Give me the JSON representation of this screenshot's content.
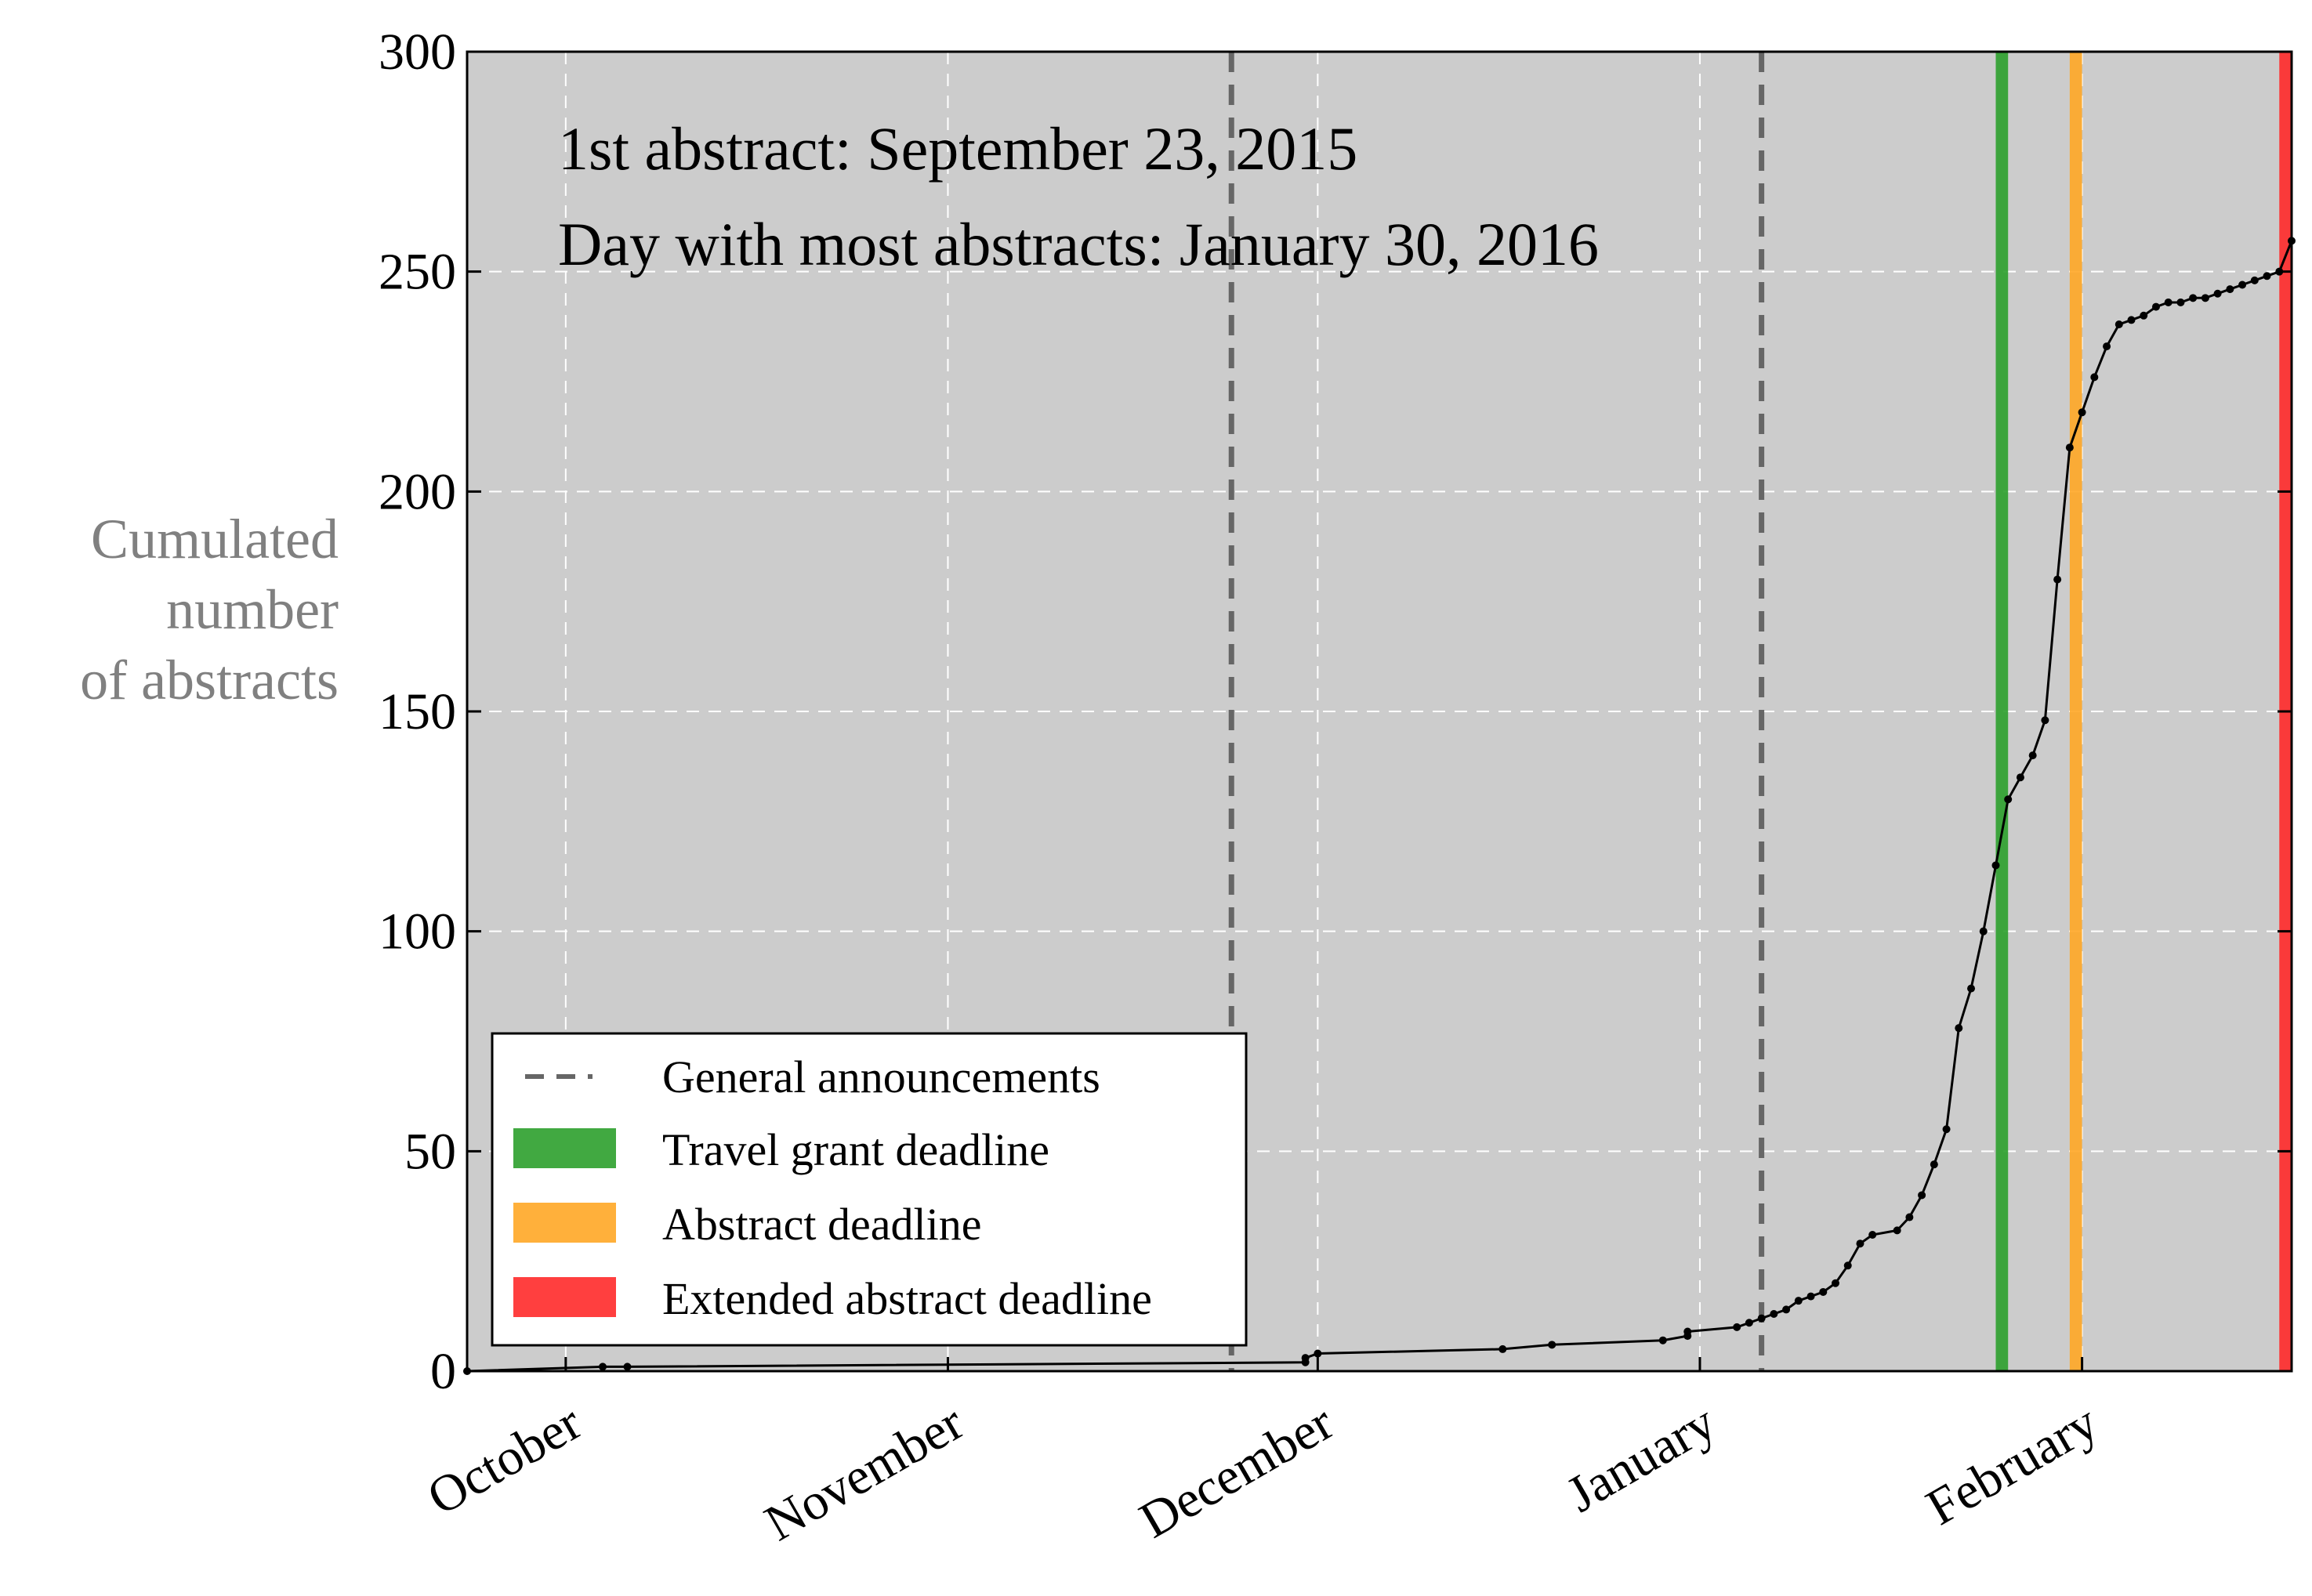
{
  "chart_data": {
    "type": "line",
    "title": "",
    "xlabel": "",
    "ylabel": "Cumulated number of abstracts",
    "ylabel_lines": [
      "Cumulated",
      "number",
      "of abstracts"
    ],
    "xlim": [
      "2015-09-23",
      "2016-02-18"
    ],
    "ylim": [
      0,
      300
    ],
    "yticks": [
      0,
      50,
      100,
      150,
      200,
      250,
      300
    ],
    "xticks": [
      {
        "date": "2015-10-01",
        "label": "October"
      },
      {
        "date": "2015-11-01",
        "label": "November"
      },
      {
        "date": "2015-12-01",
        "label": "December"
      },
      {
        "date": "2016-01-01",
        "label": "January"
      },
      {
        "date": "2016-02-01",
        "label": "February"
      }
    ],
    "grid": true,
    "background": "#cccccc",
    "annotations": [
      "1st abstract: September 23, 2015",
      "Day with most abstracts: January 30, 2016"
    ],
    "general_announcements": [
      "2015-11-24",
      "2016-01-06"
    ],
    "deadline_bands": [
      {
        "name": "Travel grant deadline",
        "start": "2016-01-25",
        "end": "2016-01-26",
        "color": "#2ca02c"
      },
      {
        "name": "Abstract deadline",
        "start": "2016-01-31",
        "end": "2016-02-01",
        "color": "#ffa726"
      },
      {
        "name": "Extended abstract deadline",
        "start": "2016-02-17",
        "end": "2016-02-18",
        "color": "#ff2a2a"
      }
    ],
    "series": [
      {
        "color": "#000000",
        "points": [
          [
            "2015-09-23",
            0
          ],
          [
            "2015-10-04",
            1
          ],
          [
            "2015-10-06",
            1
          ],
          [
            "2015-11-30",
            2
          ],
          [
            "2015-11-30",
            3
          ],
          [
            "2015-12-01",
            4
          ],
          [
            "2015-12-16",
            5
          ],
          [
            "2015-12-20",
            6
          ],
          [
            "2015-12-29",
            7
          ],
          [
            "2015-12-31",
            8
          ],
          [
            "2015-12-31",
            9
          ],
          [
            "2016-01-04",
            10
          ],
          [
            "2016-01-05",
            11
          ],
          [
            "2016-01-06",
            12
          ],
          [
            "2016-01-07",
            13
          ],
          [
            "2016-01-08",
            14
          ],
          [
            "2016-01-09",
            16
          ],
          [
            "2016-01-10",
            17
          ],
          [
            "2016-01-11",
            18
          ],
          [
            "2016-01-12",
            20
          ],
          [
            "2016-01-13",
            24
          ],
          [
            "2016-01-14",
            29
          ],
          [
            "2016-01-15",
            31
          ],
          [
            "2016-01-17",
            32
          ],
          [
            "2016-01-18",
            35
          ],
          [
            "2016-01-19",
            40
          ],
          [
            "2016-01-20",
            47
          ],
          [
            "2016-01-21",
            55
          ],
          [
            "2016-01-22",
            78
          ],
          [
            "2016-01-23",
            87
          ],
          [
            "2016-01-24",
            100
          ],
          [
            "2016-01-25",
            115
          ],
          [
            "2016-01-26",
            130
          ],
          [
            "2016-01-27",
            135
          ],
          [
            "2016-01-28",
            140
          ],
          [
            "2016-01-29",
            148
          ],
          [
            "2016-01-30",
            180
          ],
          [
            "2016-01-31",
            210
          ],
          [
            "2016-02-01",
            218
          ],
          [
            "2016-02-02",
            226
          ],
          [
            "2016-02-03",
            233
          ],
          [
            "2016-02-04",
            238
          ],
          [
            "2016-02-05",
            239
          ],
          [
            "2016-02-06",
            240
          ],
          [
            "2016-02-07",
            242
          ],
          [
            "2016-02-08",
            243
          ],
          [
            "2016-02-09",
            243
          ],
          [
            "2016-02-10",
            244
          ],
          [
            "2016-02-11",
            244
          ],
          [
            "2016-02-12",
            245
          ],
          [
            "2016-02-13",
            246
          ],
          [
            "2016-02-14",
            247
          ],
          [
            "2016-02-15",
            248
          ],
          [
            "2016-02-16",
            249
          ],
          [
            "2016-02-17",
            250
          ],
          [
            "2016-02-18",
            257
          ]
        ]
      }
    ]
  },
  "legend": {
    "items": [
      {
        "label": "General announcements",
        "kind": "dashed",
        "color": "#666666"
      },
      {
        "label": "Travel grant deadline",
        "kind": "patch",
        "color": "#2ca02c"
      },
      {
        "label": "Abstract deadline",
        "kind": "patch",
        "color": "#ffa726"
      },
      {
        "label": "Extended abstract deadline",
        "kind": "patch",
        "color": "#ff2a2a"
      }
    ]
  }
}
